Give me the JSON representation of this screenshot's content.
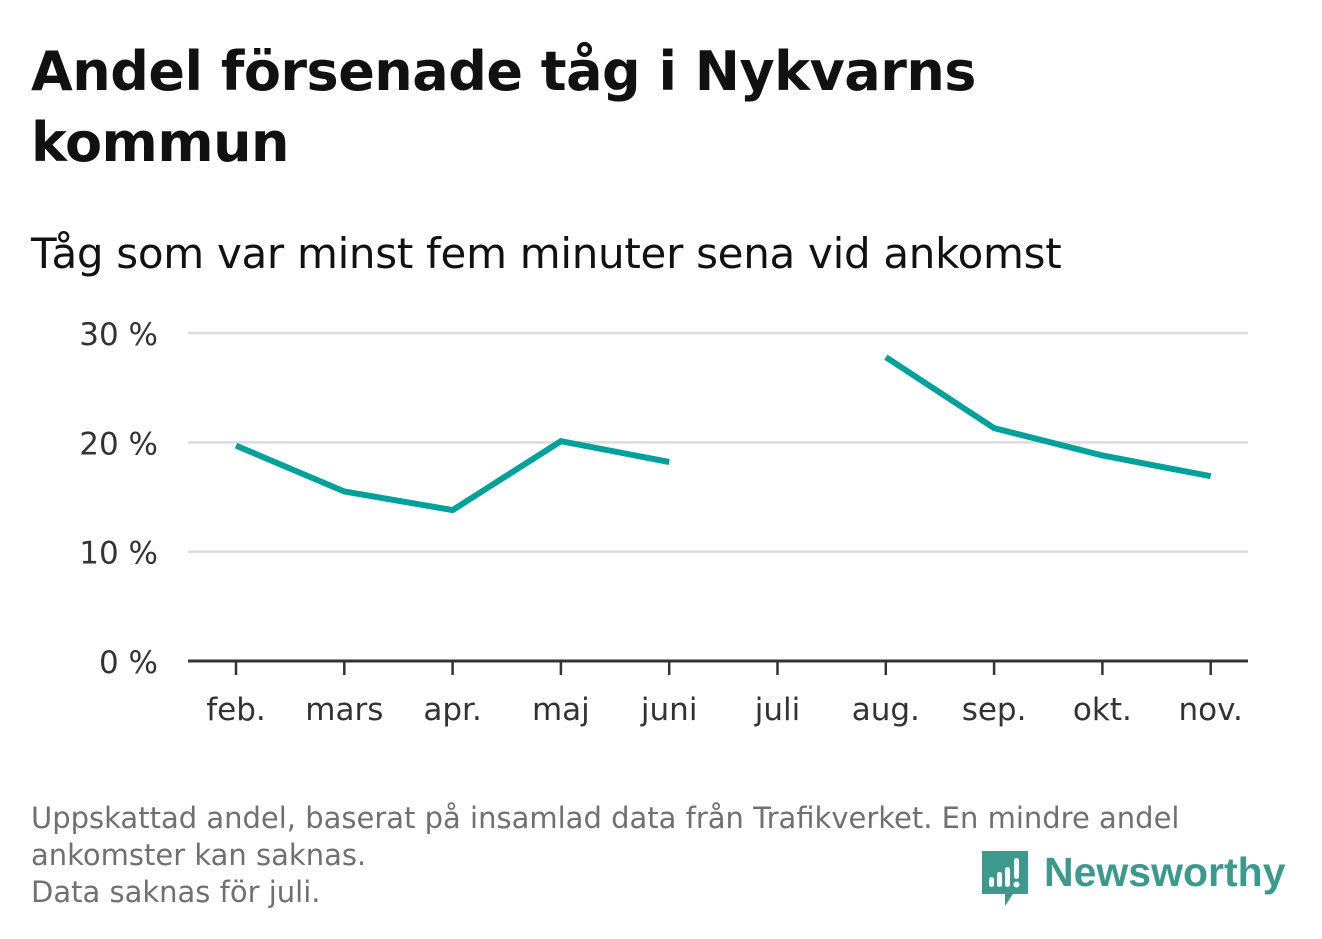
{
  "title": "Andel försenade tåg i Nykvarns kommun",
  "subtitle": "Tåg som var minst fem minuter sena vid ankomst",
  "footnote": {
    "lines": [
      "Uppskattad andel, baserat på insamlad data från Trafikverket. En mindre andel",
      "ankomster kan saknas.",
      "Data saknas för juli."
    ]
  },
  "brand": {
    "name": "Newsworthy",
    "icon": "newsworthy-logo-icon",
    "color": "#3b9a8d"
  },
  "colors": {
    "line": "#00a19a",
    "grid": "#dcdcdc",
    "axis": "#333333",
    "text": "#333333"
  },
  "chart_data": {
    "type": "line",
    "title": "Andel försenade tåg i Nykvarns kommun",
    "subtitle": "Tåg som var minst fem minuter sena vid ankomst",
    "categories": [
      "feb.",
      "mars",
      "apr.",
      "maj",
      "juni",
      "juli",
      "aug.",
      "sep.",
      "okt.",
      "nov."
    ],
    "series": [
      {
        "values": [
          19.7,
          15.5,
          13.8,
          20.1,
          18.2,
          null,
          27.8,
          21.3,
          18.8,
          16.9
        ]
      }
    ],
    "ylim": [
      0,
      30
    ],
    "yticks": [
      0,
      10,
      20,
      30
    ],
    "ytick_labels": [
      "0 %",
      "10 %",
      "20 %",
      "30 %"
    ],
    "grid": true,
    "xlabel": "",
    "ylabel": ""
  }
}
